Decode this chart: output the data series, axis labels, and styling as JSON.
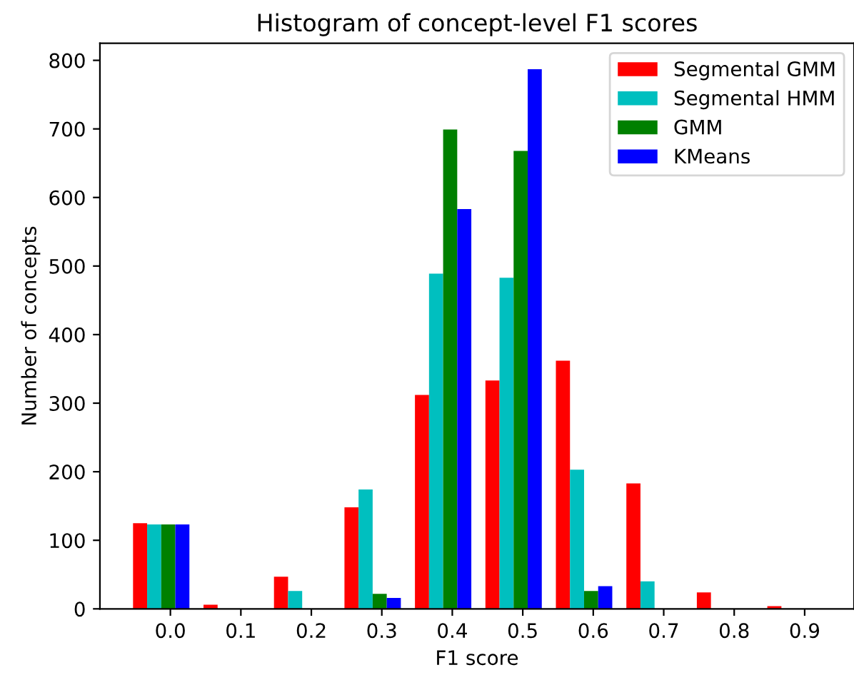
{
  "chart_data": {
    "type": "histogram",
    "title": "Histogram of concept-level F1 scores",
    "xlabel": "F1 score",
    "ylabel": "Number of concepts",
    "bins": [
      -0.063,
      0.037,
      0.137,
      0.237,
      0.337,
      0.437,
      0.537,
      0.637,
      0.737,
      0.837,
      0.937
    ],
    "series": [
      {
        "name": "Segmental GMM",
        "color": "#ff0000",
        "values": [
          125,
          6,
          47,
          148,
          312,
          333,
          362,
          183,
          24,
          4
        ]
      },
      {
        "name": "Segmental HMM",
        "color": "#00bfbf",
        "values": [
          123,
          0,
          26,
          174,
          489,
          483,
          203,
          40,
          0,
          0
        ]
      },
      {
        "name": "GMM",
        "color": "#008000",
        "values": [
          123,
          0,
          0,
          22,
          699,
          668,
          26,
          0,
          0,
          0
        ]
      },
      {
        "name": "KMeans",
        "color": "#0000ff",
        "values": [
          123,
          0,
          0,
          16,
          583,
          787,
          33,
          0,
          0,
          0
        ]
      }
    ],
    "xlim": [
      -0.1,
      0.97
    ],
    "xticks": [
      {
        "value": 0.0,
        "label": "0.0"
      },
      0.1,
      0.2,
      0.3,
      0.4,
      0.5,
      0.6,
      0.7,
      0.8,
      0.9
    ],
    "ylim": [
      0,
      825
    ],
    "yticks": [
      0,
      100,
      200,
      300,
      400,
      500,
      600,
      700,
      800
    ],
    "legend": "top right",
    "grid": false
  }
}
